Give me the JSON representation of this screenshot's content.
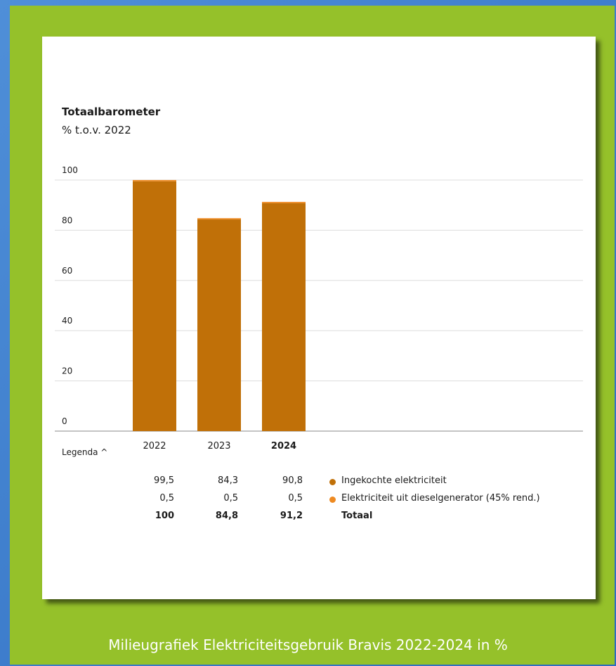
{
  "caption": "Milieugrafiek Elektriciteitsgebruik Bravis 2022-2024 in %",
  "legend_toggle": "Legenda ^",
  "colors": {
    "background": "#95c12a",
    "bar_main": "#c07008",
    "bar_top": "#ee8a22"
  },
  "chart_data": {
    "type": "bar",
    "stacked": true,
    "title": "Totaalbarometer",
    "subtitle": "% t.o.v. 2022",
    "categories": [
      "2022",
      "2023",
      "2024"
    ],
    "highlight_category": "2024",
    "ylim": [
      0,
      100
    ],
    "yticks": [
      "0",
      "20",
      "40",
      "60",
      "80",
      "100"
    ],
    "grid": true,
    "series": [
      {
        "name": "Ingekochte elektriciteit",
        "values": [
          99.5,
          84.3,
          90.8
        ],
        "labels": [
          "99,5",
          "84,3",
          "90,8"
        ],
        "color": "#c07008"
      },
      {
        "name": "Elektriciteit uit dieselgenerator (45% rend.)",
        "values": [
          0.5,
          0.5,
          0.5
        ],
        "labels": [
          "0,5",
          "0,5",
          "0,5"
        ],
        "color": "#ee8a22"
      }
    ],
    "totals": {
      "name": "Totaal",
      "values": [
        100,
        84.8,
        91.2
      ],
      "labels": [
        "100",
        "84,8",
        "91,2"
      ]
    }
  }
}
